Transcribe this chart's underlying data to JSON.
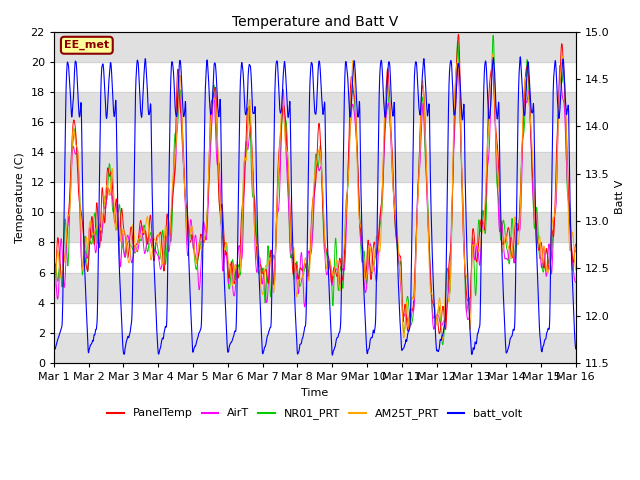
{
  "title": "Temperature and Batt V",
  "xlabel": "Time",
  "ylabel_left": "Temperature (C)",
  "ylabel_right": "Batt V",
  "ylim_left": [
    0,
    22
  ],
  "ylim_right": [
    11.5,
    15.0
  ],
  "yticks_left": [
    0,
    2,
    4,
    6,
    8,
    10,
    12,
    14,
    16,
    18,
    20,
    22
  ],
  "yticks_right": [
    11.5,
    12.0,
    12.5,
    13.0,
    13.5,
    14.0,
    14.5,
    15.0
  ],
  "xtick_labels": [
    "Mar 1",
    "Mar 2",
    "Mar 3",
    "Mar 4",
    "Mar 5",
    "Mar 6",
    "Mar 7",
    "Mar 8",
    "Mar 9",
    "Mar 10",
    "Mar 11",
    "Mar 12",
    "Mar 13",
    "Mar 14",
    "Mar 15",
    "Mar 16"
  ],
  "colors": {
    "PanelTemp": "#ff0000",
    "AirT": "#ff00ff",
    "NR01_PRT": "#00cc00",
    "AM25T_PRT": "#ffa500",
    "batt_volt": "#0000ff"
  },
  "annotation_text": "EE_met",
  "annotation_color": "#8b0000",
  "annotation_bg": "#ffff99",
  "background_color": "#ffffff",
  "plot_bg_color": "#ffffff",
  "band_color": "#e0e0e0",
  "n_days": 15,
  "pts_per_day": 144,
  "day_maxes": [
    16,
    12.5,
    9,
    18.5,
    18.5,
    17,
    18,
    15,
    19.5,
    19,
    18.5,
    21,
    20,
    20,
    21
  ],
  "night_mins": [
    6.5,
    9,
    8,
    8,
    7.5,
    6,
    6,
    6,
    6,
    7,
    3,
    3,
    8,
    8,
    7
  ]
}
